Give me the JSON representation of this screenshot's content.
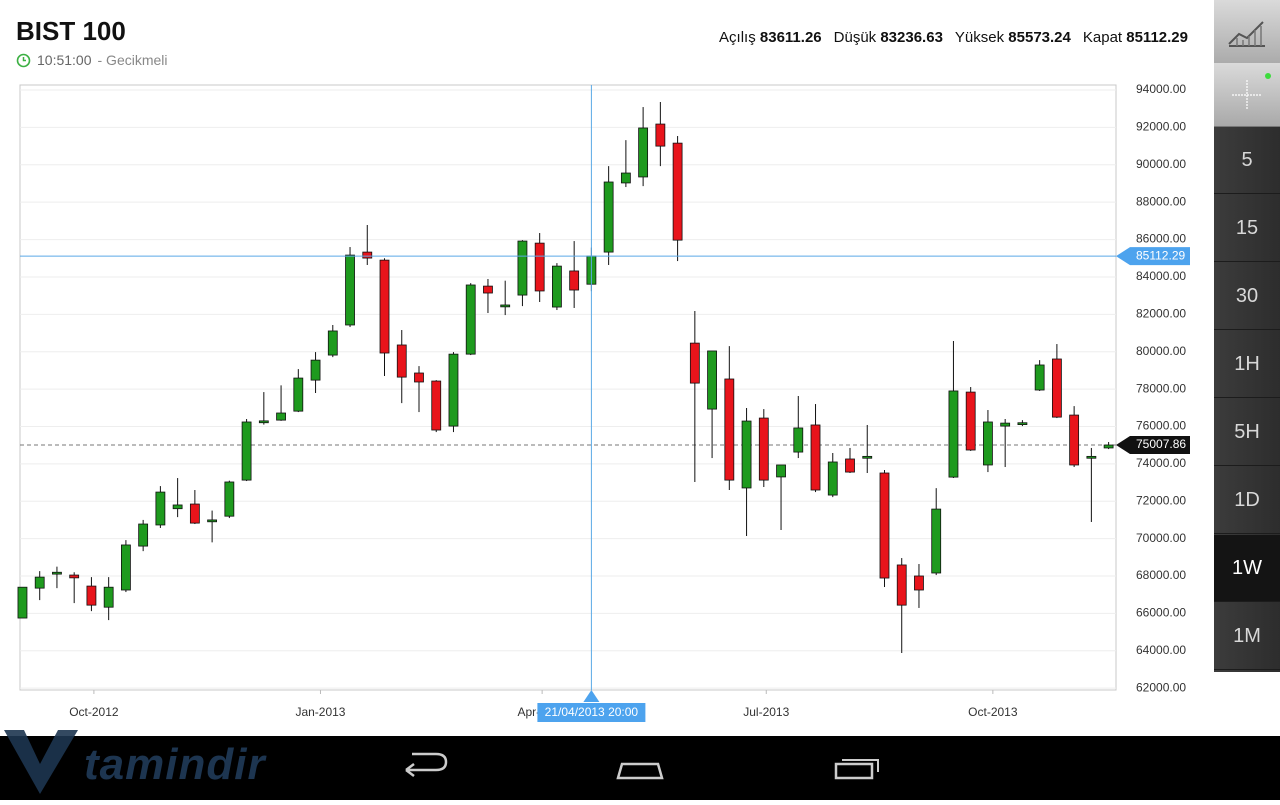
{
  "header": {
    "title": "BIST 100",
    "time": "10:51:00",
    "status": "- Gecikmeli",
    "stats": [
      {
        "label": "Açılış",
        "value": 83611.26
      },
      {
        "label": "Düşük",
        "value": 83236.63
      },
      {
        "label": "Yüksek",
        "value": 85573.24
      },
      {
        "label": "Kapat",
        "value": 85112.29
      }
    ]
  },
  "chart_data": {
    "type": "candlestick",
    "x": [
      "2012-09-02",
      "2012-09-09",
      "2012-09-16",
      "2012-09-23",
      "2012-09-30",
      "2012-10-07",
      "2012-10-14",
      "2012-10-21",
      "2012-10-28",
      "2012-11-04",
      "2012-11-11",
      "2012-11-18",
      "2012-11-25",
      "2012-12-02",
      "2012-12-09",
      "2012-12-16",
      "2012-12-23",
      "2012-12-30",
      "2013-01-06",
      "2013-01-13",
      "2013-01-20",
      "2013-01-27",
      "2013-02-03",
      "2013-02-10",
      "2013-02-17",
      "2013-02-24",
      "2013-03-03",
      "2013-03-10",
      "2013-03-17",
      "2013-03-24",
      "2013-03-31",
      "2013-04-07",
      "2013-04-14",
      "2013-04-21",
      "2013-04-28",
      "2013-05-05",
      "2013-05-12",
      "2013-05-19",
      "2013-05-26",
      "2013-06-02",
      "2013-06-09",
      "2013-06-16",
      "2013-06-23",
      "2013-06-30",
      "2013-07-07",
      "2013-07-14",
      "2013-07-21",
      "2013-07-28",
      "2013-08-04",
      "2013-08-11",
      "2013-08-18",
      "2013-08-25",
      "2013-09-01",
      "2013-09-08",
      "2013-09-15",
      "2013-09-22",
      "2013-09-29",
      "2013-10-06",
      "2013-10-13",
      "2013-10-20",
      "2013-10-27",
      "2013-11-03",
      "2013-11-10",
      "2013-11-17"
    ],
    "open": [
      65750,
      67350,
      68100,
      68050,
      67460,
      66330,
      67250,
      69600,
      70730,
      71600,
      71850,
      70900,
      71200,
      73130,
      76200,
      76340,
      76820,
      78480,
      79820,
      81430,
      85330,
      84900,
      80360,
      78860,
      78430,
      76020,
      79870,
      83510,
      82400,
      83030,
      85810,
      82390,
      84320,
      83611.26,
      85330,
      89030,
      89350,
      92180,
      91160,
      80460,
      76930,
      78540,
      72710,
      76450,
      73300,
      74630,
      76080,
      72330,
      74260,
      74300,
      73510,
      68590,
      68000,
      68160,
      73290,
      77840,
      73940,
      76020,
      76100,
      77950,
      79610,
      76610,
      74300,
      74850
    ],
    "high": [
      67400,
      68260,
      68500,
      68200,
      67940,
      67940,
      69920,
      71000,
      72810,
      73240,
      72600,
      71500,
      73100,
      76400,
      77840,
      78200,
      79070,
      79980,
      81430,
      85600,
      86780,
      85000,
      81160,
      79230,
      78480,
      79980,
      83670,
      83890,
      83800,
      85970,
      86350,
      84740,
      85920,
      85573.24,
      89930,
      91320,
      93090,
      93360,
      91540,
      82180,
      80040,
      80300,
      76990,
      76930,
      73940,
      77630,
      77200,
      74580,
      74850,
      76080,
      73670,
      68960,
      68640,
      72700,
      80570,
      78110,
      76880,
      76400,
      76340,
      79550,
      80410,
      77090,
      74850,
      75170
    ],
    "low": [
      65750,
      66710,
      67350,
      66550,
      66120,
      65640,
      67140,
      69330,
      70570,
      71150,
      70780,
      69800,
      71100,
      73080,
      76100,
      76300,
      76770,
      77790,
      79710,
      81320,
      84640,
      78700,
      77250,
      76770,
      75700,
      75700,
      79820,
      82070,
      81960,
      82440,
      82660,
      82230,
      82340,
      83236.63,
      84640,
      88810,
      88860,
      89930,
      84850,
      73030,
      74310,
      72600,
      70140,
      72760,
      70460,
      74310,
      72490,
      72220,
      73510,
      73510,
      67410,
      63880,
      66290,
      68050,
      73240,
      74690,
      73560,
      73830,
      76020,
      77900,
      76450,
      73830,
      70890,
      74790
    ],
    "close": [
      67400,
      67940,
      68200,
      67900,
      66440,
      67400,
      69660,
      70780,
      72490,
      71800,
      70830,
      71000,
      73030,
      76240,
      76300,
      76720,
      78590,
      79550,
      81110,
      85170,
      85010,
      79930,
      78640,
      78380,
      75810,
      79870,
      83570,
      83140,
      82500,
      85920,
      83250,
      84580,
      83300,
      85112.29,
      89080,
      89560,
      91970,
      91000,
      85970,
      78320,
      80040,
      73130,
      76290,
      73130,
      73940,
      75920,
      72600,
      74100,
      73560,
      74400,
      67890,
      66440,
      67250,
      71580,
      77900,
      74740,
      76240,
      76180,
      76200,
      79290,
      76500,
      73940,
      74400,
      75007.86
    ],
    "up_color": "#1e9a1e",
    "down_color": "#e8141b",
    "xlim": [
      "2012-09-01",
      "2013-11-20"
    ],
    "xticks": [
      {
        "value": "2012-10-01",
        "label": "Oct-2012"
      },
      {
        "value": "2013-01-01",
        "label": "Jan-2013"
      },
      {
        "value": "2013-04-01",
        "label": "Apr-2013"
      },
      {
        "value": "2013-07-01",
        "label": "Jul-2013"
      },
      {
        "value": "2013-10-01",
        "label": "Oct-2013"
      }
    ],
    "ylim": [
      61900,
      94270
    ],
    "yticks": [
      {
        "value": 62000,
        "label": "62000.00"
      },
      {
        "value": 64000,
        "label": "64000.00"
      },
      {
        "value": 66000,
        "label": "66000.00"
      },
      {
        "value": 68000,
        "label": "68000.00"
      },
      {
        "value": 70000,
        "label": "70000.00"
      },
      {
        "value": 72000,
        "label": "72000.00"
      },
      {
        "value": 74000,
        "label": "74000.00"
      },
      {
        "value": 76000,
        "label": "76000.00"
      },
      {
        "value": 78000,
        "label": "78000.00"
      },
      {
        "value": 80000,
        "label": "80000.00"
      },
      {
        "value": 82000,
        "label": "82000.00"
      },
      {
        "value": 84000,
        "label": "84000.00"
      },
      {
        "value": 86000,
        "label": "86000.00"
      },
      {
        "value": 88000,
        "label": "88000.00"
      },
      {
        "value": 90000,
        "label": "90000.00"
      },
      {
        "value": 92000,
        "label": "92000.00"
      },
      {
        "value": 94000,
        "label": "94000.00"
      }
    ],
    "grid": true,
    "crosshair": {
      "x": "2013-04-21",
      "x_label": "21/04/2013 20:00",
      "y": 85112.29
    },
    "last_price": 75007.86
  },
  "sidebar": {
    "intervals": [
      "5",
      "15",
      "30",
      "1H",
      "5H",
      "1D",
      "1W",
      "1M"
    ],
    "selected": "1W"
  },
  "watermark": "tamindir"
}
